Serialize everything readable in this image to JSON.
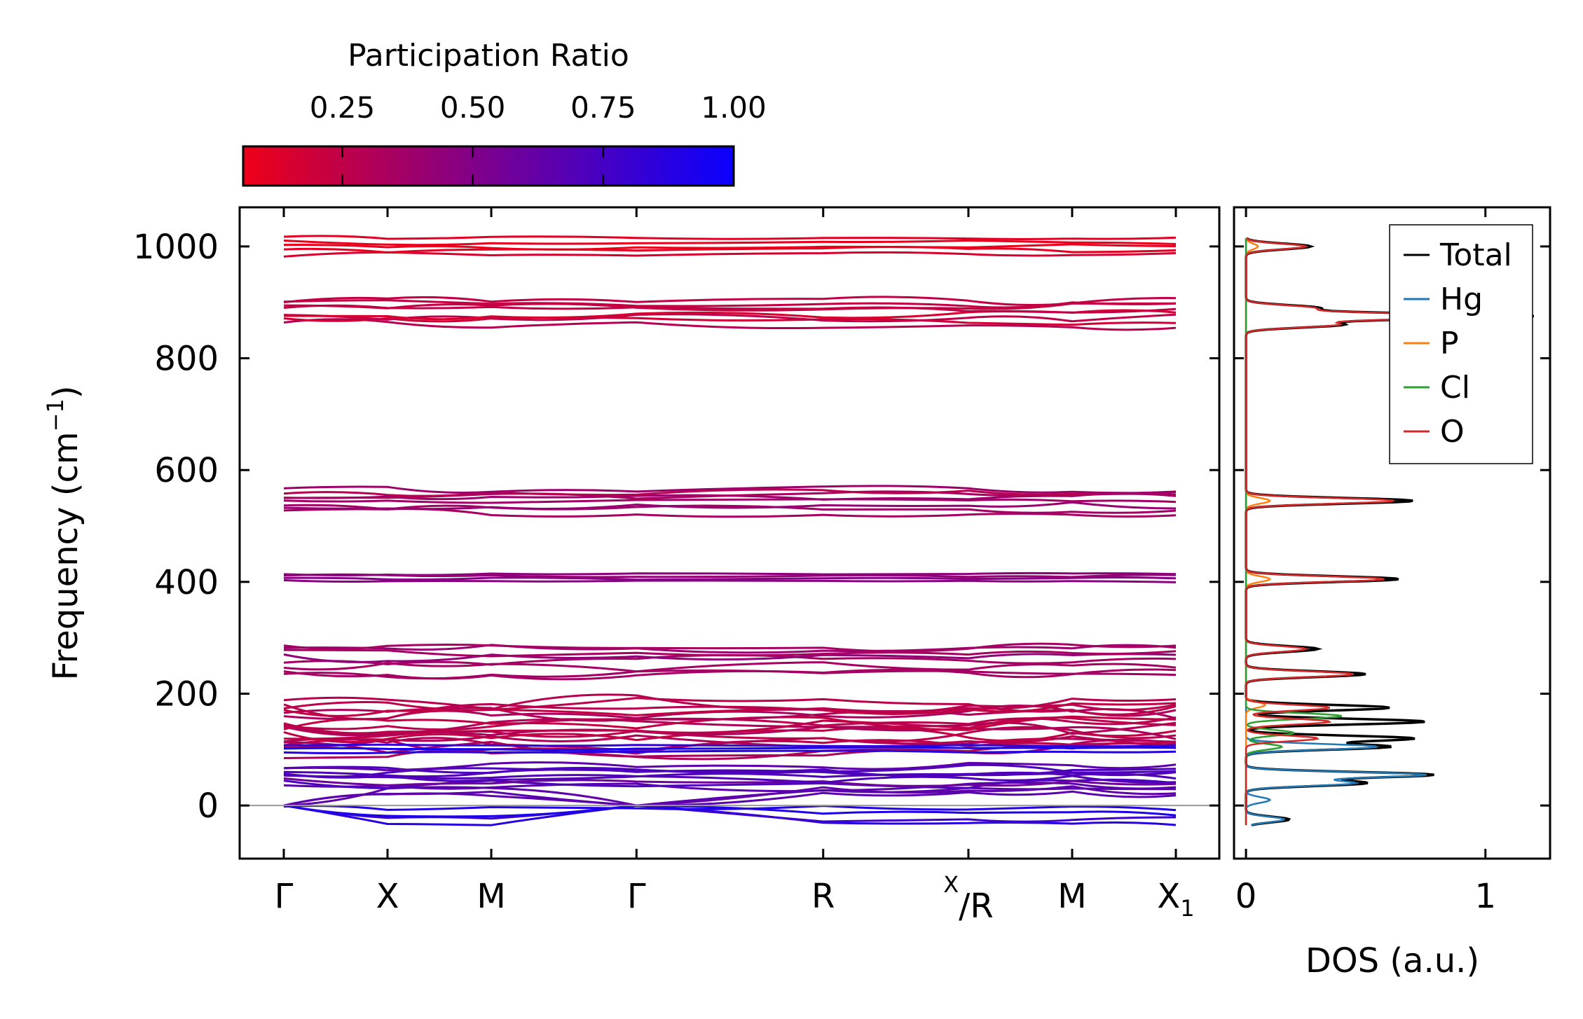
{
  "chart_data": [
    {
      "type": "line",
      "name": "phonon-band-structure",
      "xlabel": "",
      "ylabel": "Frequency (cm",
      "ylabel_sup": "−1",
      "ylabel_end": ")",
      "ylim": [
        -95,
        1070
      ],
      "yticks": [
        0,
        200,
        400,
        600,
        800,
        1000
      ],
      "path_labels": [
        "Γ",
        "X",
        "M",
        "Γ",
        "R",
        "X/R",
        "M",
        "X1"
      ],
      "path_label_parts": [
        {
          "main": "Γ"
        },
        {
          "main": "X"
        },
        {
          "main": "M"
        },
        {
          "main": "Γ"
        },
        {
          "main": "R"
        },
        {
          "sup": "X",
          "main": "/R"
        },
        {
          "main": "M"
        },
        {
          "main": "X",
          "sub": "1"
        }
      ],
      "path_positions": [
        0,
        1.0,
        2.0,
        3.4,
        5.2,
        6.6,
        7.6,
        8.6
      ],
      "segment_breaks": [
        6.6
      ],
      "band_groups": [
        {
          "center": 1000,
          "spread": 14,
          "count": 5,
          "participation": 0.12
        },
        {
          "center": 882,
          "spread": 22,
          "count": 8,
          "participation": 0.22
        },
        {
          "center": 545,
          "spread": 20,
          "count": 8,
          "participation": 0.35
        },
        {
          "center": 408,
          "spread": 7,
          "count": 4,
          "participation": 0.45
        },
        {
          "center": 260,
          "spread": 28,
          "count": 8,
          "participation": 0.38
        },
        {
          "center": 140,
          "spread": 45,
          "count": 18,
          "participation": 0.3
        },
        {
          "center": 102,
          "spread": 6,
          "count": 3,
          "participation": 0.9
        },
        {
          "center": 45,
          "spread": 25,
          "count": 12,
          "participation": 0.65
        },
        {
          "center": -20,
          "spread": 15,
          "count": 4,
          "participation": 0.85
        }
      ],
      "zero_line": 0
    },
    {
      "type": "line",
      "name": "density-of-states",
      "xlabel": "DOS (a.u.)",
      "xlim": [
        -0.05,
        1.27
      ],
      "xticks": [
        0,
        1
      ],
      "ylim": [
        -95,
        1070
      ],
      "legend_placement": "top-right",
      "series": [
        {
          "name": "Total",
          "color": "#000000",
          "peaks": [
            [
              1000,
              0.27
            ],
            [
              890,
              0.3
            ],
            [
              875,
              1.2
            ],
            [
              860,
              0.4
            ],
            [
              545,
              0.7
            ],
            [
              405,
              0.64
            ],
            [
              280,
              0.3
            ],
            [
              235,
              0.5
            ],
            [
              175,
              0.6
            ],
            [
              150,
              0.75
            ],
            [
              120,
              0.7
            ],
            [
              105,
              0.6
            ],
            [
              55,
              0.78
            ],
            [
              40,
              0.5
            ],
            [
              -25,
              0.18
            ]
          ]
        },
        {
          "name": "Hg",
          "color": "#1f77b4",
          "peaks": [
            [
              55,
              0.75
            ],
            [
              40,
              0.45
            ],
            [
              105,
              0.55
            ],
            [
              -25,
              0.16
            ],
            [
              10,
              0.1
            ]
          ]
        },
        {
          "name": "P",
          "color": "#ff7f0e",
          "peaks": [
            [
              1000,
              0.05
            ],
            [
              545,
              0.1
            ],
            [
              405,
              0.1
            ],
            [
              180,
              0.08
            ]
          ]
        },
        {
          "name": "Cl",
          "color": "#2ca02c",
          "peaks": [
            [
              160,
              0.4
            ],
            [
              130,
              0.2
            ],
            [
              105,
              0.15
            ]
          ]
        },
        {
          "name": "O",
          "color": "#d62728",
          "peaks": [
            [
              1000,
              0.25
            ],
            [
              890,
              0.28
            ],
            [
              875,
              1.15
            ],
            [
              860,
              0.38
            ],
            [
              545,
              0.62
            ],
            [
              405,
              0.58
            ],
            [
              280,
              0.25
            ],
            [
              235,
              0.45
            ],
            [
              175,
              0.35
            ],
            [
              150,
              0.35
            ],
            [
              120,
              0.3
            ]
          ]
        }
      ]
    }
  ],
  "colorbar": {
    "title": "Participation Ratio",
    "ticks": [
      0.25,
      0.5,
      0.75,
      1.0
    ],
    "tick_labels": [
      "0.25",
      "0.50",
      "0.75",
      "1.00"
    ],
    "range": [
      0.06,
      1.0
    ],
    "color_low": "#ee0018",
    "color_mid": "#7a0090",
    "color_high": "#0a00ff"
  }
}
